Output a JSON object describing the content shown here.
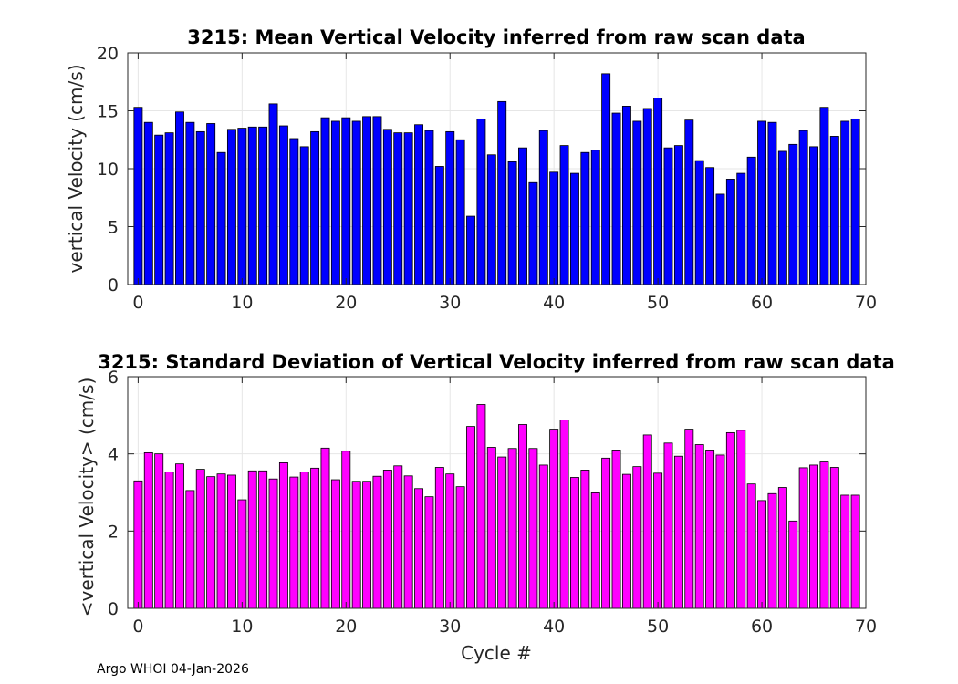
{
  "footer_text": "Argo WHOI 04-Jan-2026",
  "chart_data": [
    {
      "type": "bar",
      "title": "3215: Mean Vertical Velocity inferred from raw scan data",
      "xlabel": "",
      "ylabel": "vertical Velocity (cm/s)",
      "xlim": [
        -1,
        70
      ],
      "ylim": [
        0,
        20
      ],
      "xticks": [
        0,
        10,
        20,
        30,
        40,
        50,
        60,
        70
      ],
      "yticks": [
        0,
        5,
        10,
        15,
        20
      ],
      "grid": true,
      "bar_color": "#0000ff",
      "x": [
        0,
        1,
        2,
        3,
        4,
        5,
        6,
        7,
        8,
        9,
        10,
        11,
        12,
        13,
        14,
        15,
        16,
        17,
        18,
        19,
        20,
        21,
        22,
        23,
        24,
        25,
        26,
        27,
        28,
        29,
        30,
        31,
        32,
        33,
        34,
        35,
        36,
        37,
        38,
        39,
        40,
        41,
        42,
        43,
        44,
        45,
        46,
        47,
        48,
        49,
        50,
        51,
        52,
        53,
        54,
        55,
        56,
        57,
        58,
        59,
        60,
        61,
        62,
        63,
        64,
        65,
        66,
        67,
        68,
        69
      ],
      "values": [
        15.3,
        14.0,
        12.9,
        13.1,
        14.9,
        14.0,
        13.2,
        13.9,
        11.4,
        13.4,
        13.5,
        13.6,
        13.6,
        15.6,
        13.7,
        12.6,
        11.9,
        13.2,
        14.4,
        14.1,
        14.4,
        14.1,
        14.5,
        14.5,
        13.4,
        13.1,
        13.1,
        13.8,
        13.3,
        10.2,
        13.2,
        12.5,
        5.9,
        14.3,
        11.2,
        15.8,
        10.6,
        11.8,
        8.8,
        13.3,
        9.7,
        12.0,
        9.6,
        11.4,
        11.6,
        18.2,
        14.8,
        15.4,
        14.1,
        15.2,
        16.1,
        11.8,
        12.0,
        14.2,
        10.7,
        10.1,
        7.8,
        9.1,
        9.6,
        11.0,
        14.1,
        14.0,
        11.5,
        12.1,
        13.3,
        11.9,
        15.3,
        12.8,
        14.1,
        14.3
      ]
    },
    {
      "type": "bar",
      "title": "3215: Standard Deviation of Vertical Velocity inferred from raw scan data",
      "xlabel": "Cycle #",
      "ylabel": "<vertical Velocity> (cm/s)",
      "xlim": [
        -1,
        70
      ],
      "ylim": [
        0,
        6
      ],
      "xticks": [
        0,
        10,
        20,
        30,
        40,
        50,
        60,
        70
      ],
      "yticks": [
        0,
        2,
        4,
        6
      ],
      "grid": true,
      "bar_color": "#ff00ff",
      "x": [
        0,
        1,
        2,
        3,
        4,
        5,
        6,
        7,
        8,
        9,
        10,
        11,
        12,
        13,
        14,
        15,
        16,
        17,
        18,
        19,
        20,
        21,
        22,
        23,
        24,
        25,
        26,
        27,
        28,
        29,
        30,
        31,
        32,
        33,
        34,
        35,
        36,
        37,
        38,
        39,
        40,
        41,
        42,
        43,
        44,
        45,
        46,
        47,
        48,
        49,
        50,
        51,
        52,
        53,
        54,
        55,
        56,
        57,
        58,
        59,
        60,
        61,
        62,
        63,
        64,
        65,
        66,
        67,
        68,
        69
      ],
      "values": [
        3.3,
        4.03,
        4.0,
        3.53,
        3.74,
        3.05,
        3.6,
        3.41,
        3.48,
        3.45,
        2.81,
        3.56,
        3.56,
        3.35,
        3.77,
        3.4,
        3.53,
        3.63,
        4.15,
        3.33,
        4.07,
        3.29,
        3.29,
        3.42,
        3.58,
        3.69,
        3.43,
        3.1,
        2.89,
        3.65,
        3.48,
        3.15,
        4.71,
        5.28,
        4.17,
        3.92,
        4.14,
        4.76,
        4.14,
        3.71,
        4.64,
        4.88,
        3.39,
        3.58,
        2.99,
        3.89,
        4.1,
        3.47,
        3.67,
        4.49,
        3.5,
        4.28,
        3.94,
        4.64,
        4.24,
        4.1,
        3.97,
        4.55,
        4.61,
        3.22,
        2.79,
        2.97,
        3.13,
        2.26,
        3.64,
        3.71,
        3.79,
        3.65,
        2.93,
        2.93
      ]
    }
  ]
}
